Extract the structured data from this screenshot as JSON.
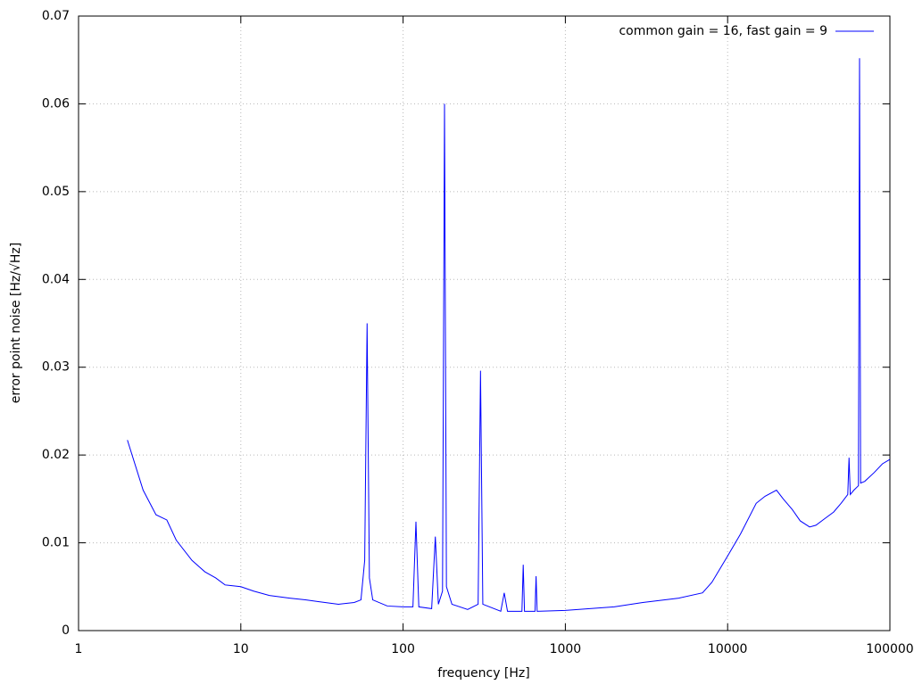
{
  "chart_data": {
    "type": "line",
    "xlabel": "frequency [Hz]",
    "ylabel": "error point noise [Hz/√Hz]",
    "xscale": "log",
    "xlim": [
      1,
      100000
    ],
    "xticks": [
      1,
      10,
      100,
      1000,
      10000,
      100000
    ],
    "ylim": [
      0,
      0.07
    ],
    "yticks": [
      0,
      0.01,
      0.02,
      0.03,
      0.04,
      0.05,
      0.06,
      0.07
    ],
    "grid": true,
    "legend": "top-right",
    "x": [
      2,
      2.5,
      3,
      3.5,
      4,
      5,
      6,
      7,
      8,
      10,
      12,
      15,
      20,
      25,
      30,
      40,
      50,
      55,
      58,
      60,
      62,
      65,
      80,
      100,
      115,
      120,
      125,
      150,
      158,
      165,
      175,
      180,
      185,
      200,
      250,
      290,
      300,
      310,
      400,
      420,
      440,
      540,
      550,
      560,
      650,
      660,
      670,
      1000,
      2000,
      3000,
      5000,
      7000,
      8000,
      10000,
      12000,
      15000,
      17000,
      20000,
      22000,
      25000,
      28000,
      32000,
      35000,
      40000,
      45000,
      50000,
      55000,
      56000,
      57000,
      60000,
      64000,
      65000,
      66000,
      70000,
      80000,
      90000,
      100000
    ],
    "series": [
      {
        "name": "common gain = 16, fast gain = 9",
        "color": "#0000ff",
        "values": [
          0.0217,
          0.016,
          0.0132,
          0.0126,
          0.0103,
          0.008,
          0.0067,
          0.006,
          0.0052,
          0.005,
          0.0045,
          0.004,
          0.0037,
          0.0035,
          0.0033,
          0.003,
          0.0032,
          0.0035,
          0.008,
          0.035,
          0.006,
          0.0035,
          0.0028,
          0.0027,
          0.0027,
          0.0124,
          0.0027,
          0.0025,
          0.0107,
          0.003,
          0.0045,
          0.06,
          0.005,
          0.003,
          0.0024,
          0.003,
          0.0296,
          0.003,
          0.0022,
          0.0043,
          0.0022,
          0.0022,
          0.0075,
          0.0022,
          0.0022,
          0.0062,
          0.0022,
          0.0023,
          0.0027,
          0.0032,
          0.0037,
          0.0043,
          0.0055,
          0.0085,
          0.011,
          0.0145,
          0.0153,
          0.016,
          0.015,
          0.0138,
          0.0125,
          0.0118,
          0.012,
          0.0128,
          0.0135,
          0.0145,
          0.0155,
          0.0197,
          0.0155,
          0.016,
          0.0165,
          0.0652,
          0.0168,
          0.017,
          0.018,
          0.019,
          0.0195
        ]
      }
    ]
  }
}
